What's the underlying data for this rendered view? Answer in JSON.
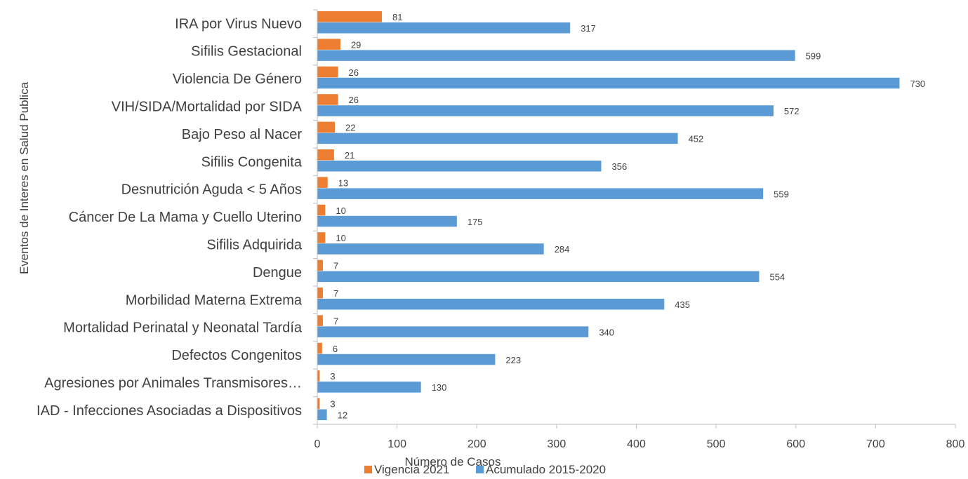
{
  "chart_data": {
    "type": "bar",
    "orientation": "horizontal",
    "categories": [
      "IRA por Virus Nuevo",
      "Sifilis Gestacional",
      "Violencia De Género",
      "VIH/SIDA/Mortalidad por SIDA",
      "Bajo Peso al Nacer",
      "Sifilis Congenita",
      "Desnutrición Aguda < 5 Años",
      "Cáncer De La Mama y Cuello Uterino",
      "Sifilis Adquirida",
      "Dengue",
      "Morbilidad Materna Extrema",
      "Mortalidad Perinatal y Neonatal Tardía",
      "Defectos Congenitos",
      "Agresiones por Animales Transmisores…",
      "IAD - Infecciones Asociadas a Dispositivos"
    ],
    "series": [
      {
        "name": "Vigencia 2021",
        "color": "#ED7D31",
        "values": [
          81,
          29,
          26,
          26,
          22,
          21,
          13,
          10,
          10,
          7,
          7,
          7,
          6,
          3,
          3
        ]
      },
      {
        "name": "Acumulado 2015-2020",
        "color": "#5B9BD5",
        "values": [
          317,
          599,
          730,
          572,
          452,
          356,
          559,
          175,
          284,
          554,
          435,
          340,
          223,
          130,
          12
        ]
      }
    ],
    "xlabel": "Número de Casos",
    "ylabel": "Eventos de Interes en Salud Publica",
    "xlim": [
      0,
      800
    ],
    "xticks": [
      0,
      100,
      200,
      300,
      400,
      500,
      600,
      700,
      800
    ],
    "grid": false,
    "legend_position": "bottom",
    "data_labels": true
  }
}
